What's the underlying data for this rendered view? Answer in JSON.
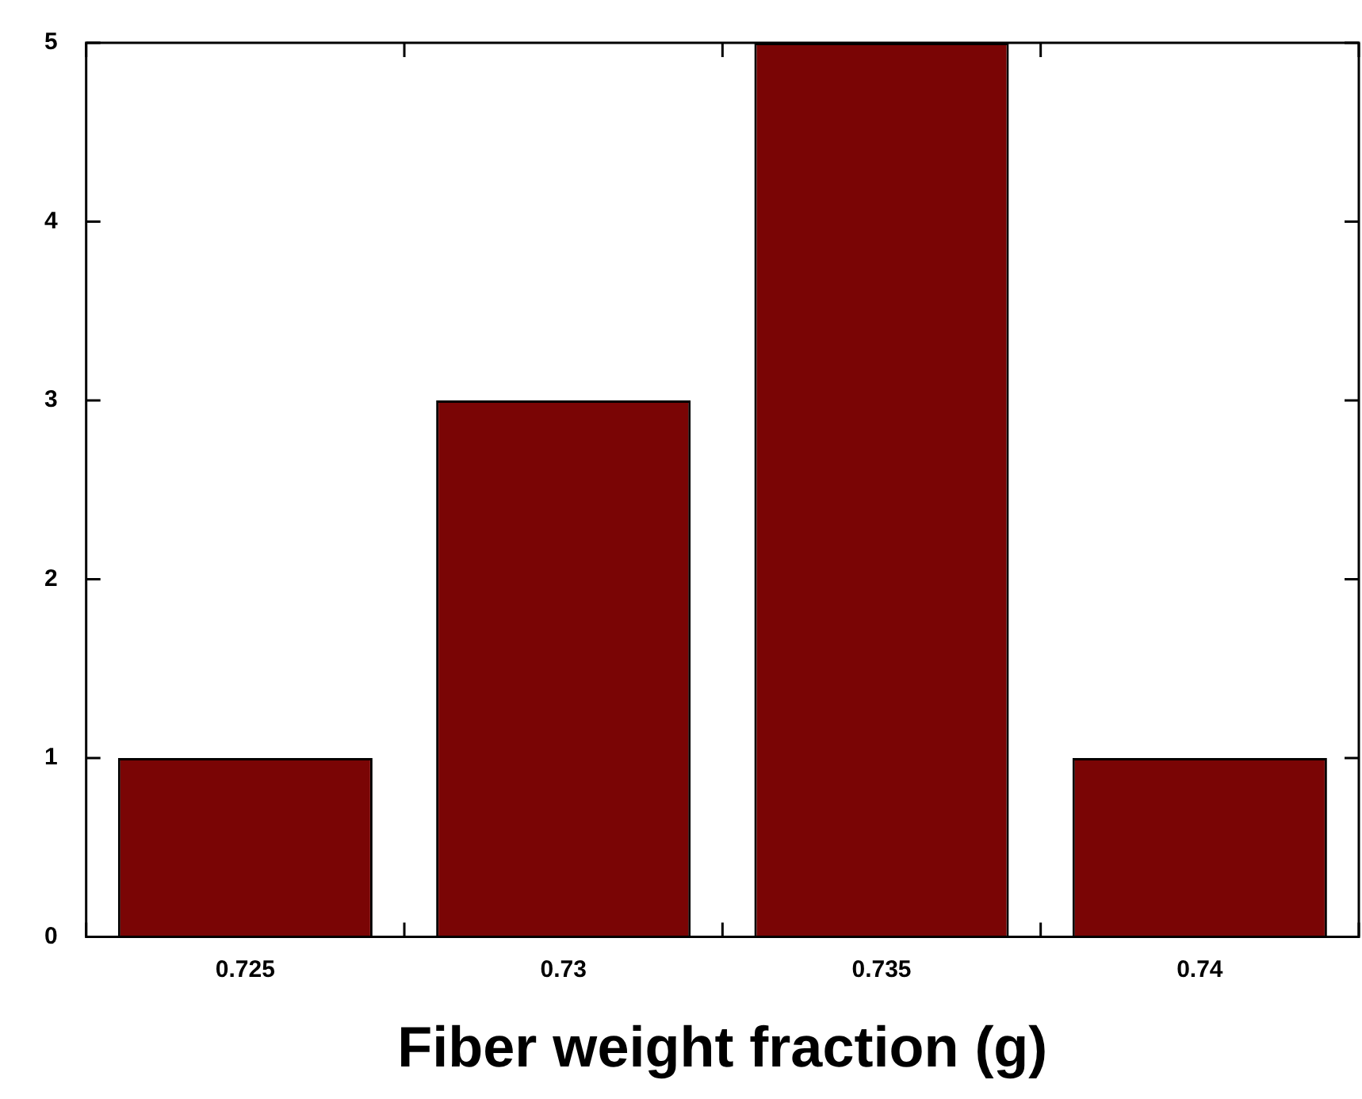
{
  "chart_data": {
    "type": "bar",
    "xlabel": "Fiber weight fraction (g)",
    "categories": [
      "0.725",
      "0.73",
      "0.735",
      "0.74"
    ],
    "values": [
      1,
      3,
      5,
      1
    ],
    "color": "#7a0505",
    "ylim": [
      0,
      5
    ],
    "yticks": [
      0,
      1,
      2,
      3,
      4,
      5
    ],
    "grid": false,
    "legend": false
  }
}
